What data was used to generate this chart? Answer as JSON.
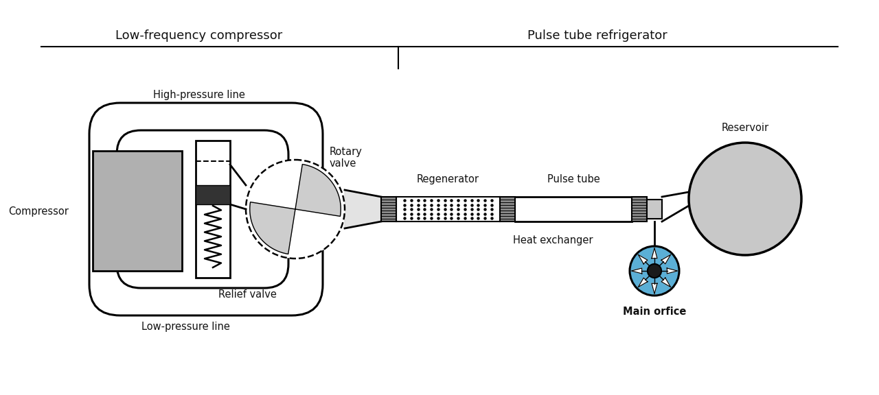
{
  "bg_color": "#ffffff",
  "text_color": "#111111",
  "gray_fill": "#b0b0b0",
  "light_gray": "#c8c8c8",
  "dark_gray": "#444444",
  "blue_fill": "#5BAFD6",
  "blue_dark": "#2980b9",
  "title_left": "Low-frequency compressor",
  "title_right": "Pulse tube refrigerator",
  "label_compressor": "Compressor",
  "label_high_pressure": "High-pressure line",
  "label_low_pressure": "Low-pressure line",
  "label_rotary": "Rotary\nvalve",
  "label_relief": "Relief valve",
  "label_regenerator": "Regenerator",
  "label_pulse_tube": "Pulse tube",
  "label_heat_exchanger": "Heat exchanger",
  "label_reservoir": "Reservoir",
  "label_main_orifice": "Main orfice",
  "font_size_labels": 10.5,
  "font_size_titles": 13
}
